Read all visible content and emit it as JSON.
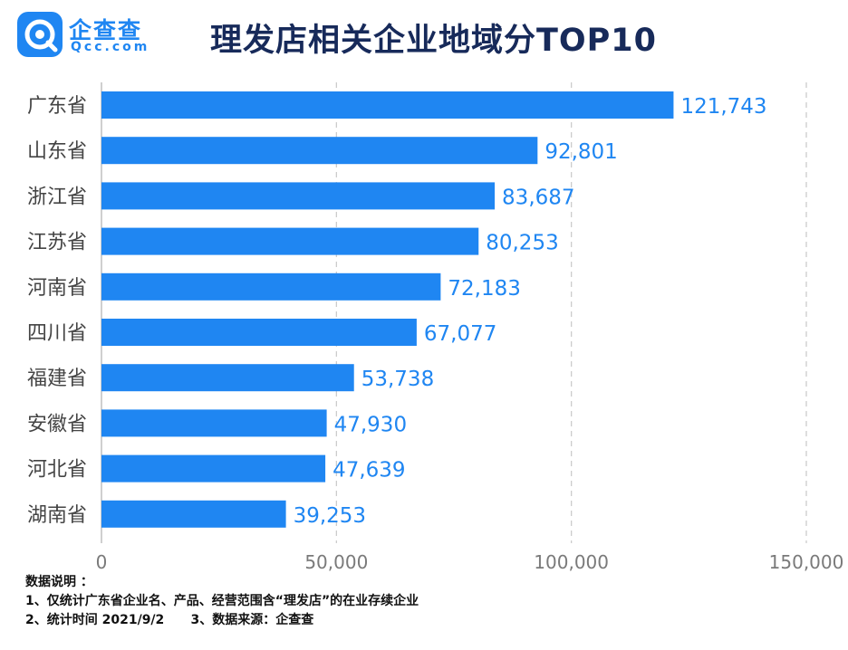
{
  "logo": {
    "name_cn": "企查查",
    "name_en": "Qcc.com"
  },
  "title": "理发店相关企业地域分TOP10",
  "chart_data": {
    "type": "bar",
    "orientation": "horizontal",
    "categories": [
      "广东省",
      "山东省",
      "浙江省",
      "江苏省",
      "河南省",
      "四川省",
      "福建省",
      "安徽省",
      "河北省",
      "湖南省"
    ],
    "values": [
      121743,
      92801,
      83687,
      80253,
      72183,
      67077,
      53738,
      47930,
      47639,
      39253
    ],
    "value_labels": [
      "121,743",
      "92,801",
      "83,687",
      "80,253",
      "72,183",
      "67,077",
      "53,738",
      "47,930",
      "47,639",
      "39,253"
    ],
    "x_ticks": [
      0,
      50000,
      100000,
      150000
    ],
    "x_tick_labels": [
      "0",
      "50,000",
      "100,000",
      "150,000"
    ],
    "xlim": [
      0,
      150000
    ],
    "grid": "vertical dashed",
    "bar_color": "#1f86f2",
    "label_color": "#1f86f2"
  },
  "notes": {
    "heading": "数据说明 ：",
    "line1": "1、仅统计广东省企业名、产品、经营范围含“理发店”的在业存续企业",
    "line2": "2、统计时间 2021/9/2      3、数据来源：企查查"
  },
  "colors": {
    "title": "#172a5a",
    "accent": "#1f86f2"
  }
}
